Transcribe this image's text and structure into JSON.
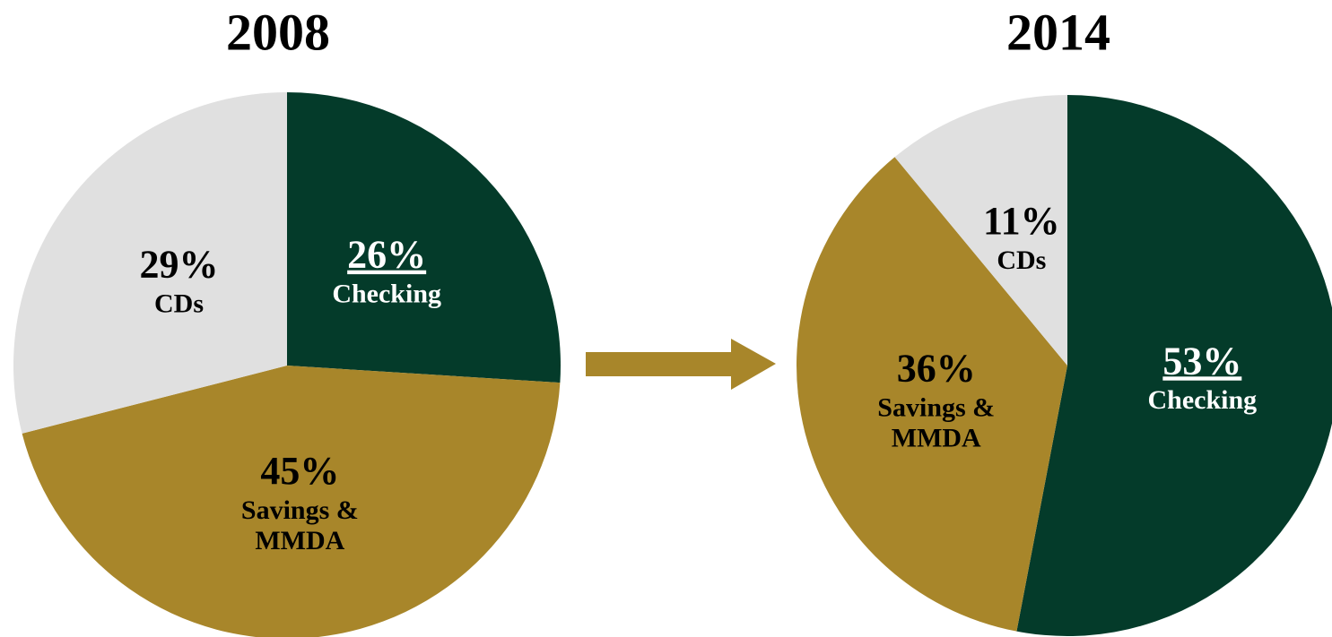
{
  "chart_data": [
    {
      "type": "pie",
      "title": "2008",
      "categories": [
        "Checking",
        "Savings & MMDA",
        "CDs"
      ],
      "values": [
        26,
        45,
        29
      ],
      "value_labels": [
        "26%",
        "45%",
        "29%"
      ],
      "colors": [
        "#043b2a",
        "#a8862a",
        "#e0e0e0"
      ],
      "label_colors": [
        "#ffffff",
        "#000000",
        "#000000"
      ]
    },
    {
      "type": "pie",
      "title": "2014",
      "categories": [
        "Checking",
        "Savings & MMDA",
        "CDs"
      ],
      "values": [
        53,
        36,
        11
      ],
      "value_labels": [
        "53%",
        "36%",
        "11%"
      ],
      "colors": [
        "#043b2a",
        "#a8862a",
        "#e0e0e0"
      ],
      "label_colors": [
        "#ffffff",
        "#000000",
        "#000000"
      ]
    }
  ]
}
